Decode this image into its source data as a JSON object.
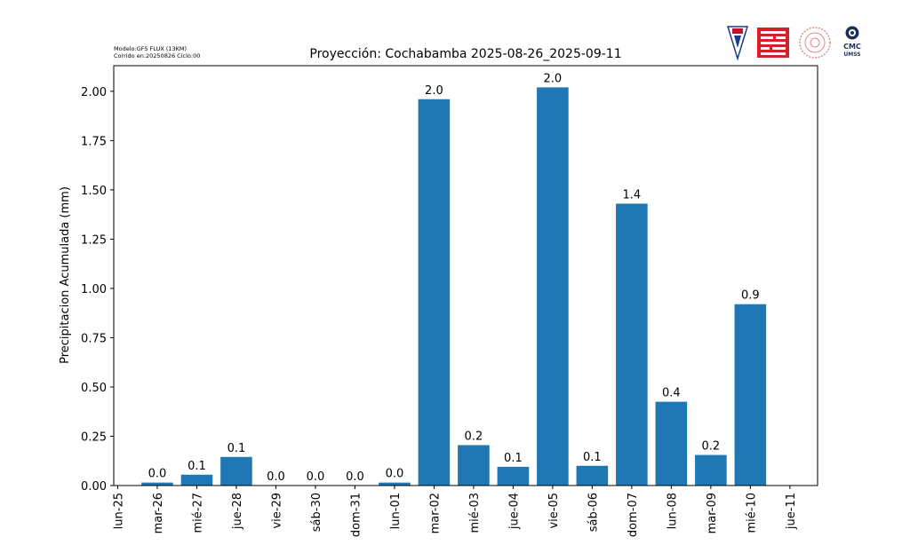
{
  "header": {
    "model_line": "Modelo:GFS FLUX (13KM)",
    "run_line": "Corrido en:20250826 Ciclo:00",
    "logo_text_1": "CMC",
    "logo_text_2": "UMSS"
  },
  "chart_data": {
    "type": "bar",
    "title": "Proyección: Cochabamba  2025-08-26_2025-09-11",
    "ylabel": "Precipitacion Acumulada (mm)",
    "xlabel": "",
    "ylim": [
      0,
      2.13
    ],
    "yticks": [
      "0.00",
      "0.25",
      "0.50",
      "0.75",
      "1.00",
      "1.25",
      "1.50",
      "1.75",
      "2.00"
    ],
    "ytick_values": [
      0,
      0.25,
      0.5,
      0.75,
      1.0,
      1.25,
      1.5,
      1.75,
      2.0
    ],
    "categories": [
      "lun-25",
      "mar-26",
      "mié-27",
      "jue-28",
      "vie-29",
      "sáb-30",
      "dom-31",
      "lun-01",
      "mar-02",
      "mié-03",
      "jue-04",
      "vie-05",
      "sáb-06",
      "dom-07",
      "lun-08",
      "mar-09",
      "mié-10",
      "jue-11"
    ],
    "bars": [
      {
        "category": "mar-26",
        "value": 0.015,
        "label": "0.0"
      },
      {
        "category": "mié-27",
        "value": 0.055,
        "label": "0.1"
      },
      {
        "category": "jue-28",
        "value": 0.145,
        "label": "0.1"
      },
      {
        "category": "vie-29",
        "value": 0.0,
        "label": "0.0"
      },
      {
        "category": "sáb-30",
        "value": 0.0,
        "label": "0.0"
      },
      {
        "category": "dom-31",
        "value": 0.0,
        "label": "0.0"
      },
      {
        "category": "lun-01",
        "value": 0.015,
        "label": "0.0"
      },
      {
        "category": "mar-02",
        "value": 1.96,
        "label": "2.0"
      },
      {
        "category": "mié-03",
        "value": 0.205,
        "label": "0.2"
      },
      {
        "category": "jue-04",
        "value": 0.095,
        "label": "0.1"
      },
      {
        "category": "vie-05",
        "value": 2.02,
        "label": "2.0"
      },
      {
        "category": "sáb-06",
        "value": 0.1,
        "label": "0.1"
      },
      {
        "category": "dom-07",
        "value": 1.43,
        "label": "1.4"
      },
      {
        "category": "lun-08",
        "value": 0.425,
        "label": "0.4"
      },
      {
        "category": "mar-09",
        "value": 0.155,
        "label": "0.2"
      },
      {
        "category": "mié-10",
        "value": 0.92,
        "label": "0.9"
      }
    ],
    "bar_color": "#1f77b4",
    "grid": false,
    "legend": "none"
  }
}
